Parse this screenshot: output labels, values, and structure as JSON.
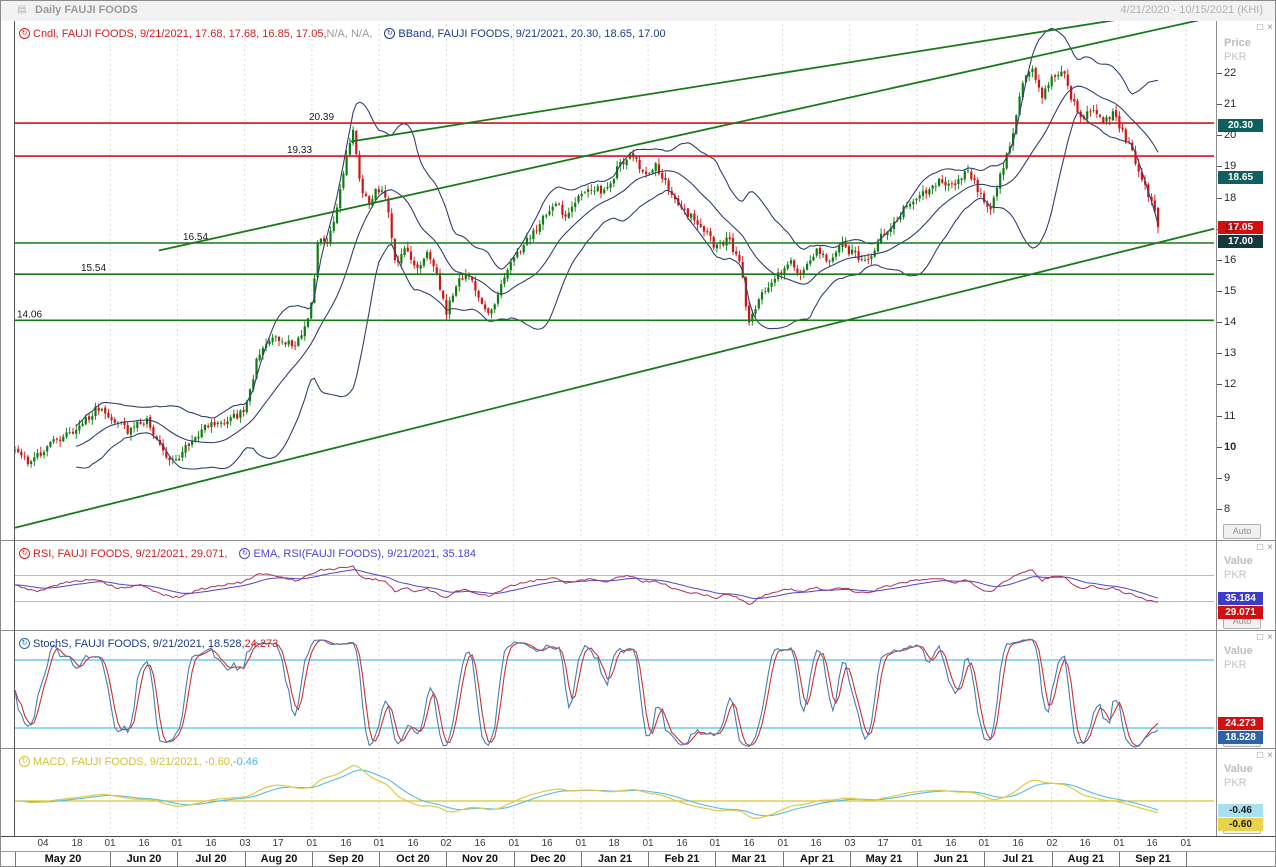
{
  "window": {
    "title": "Daily FAUJI FOODS",
    "date_range": "4/21/2020 - 10/15/2021 (KHI)"
  },
  "icons": {
    "maximize": "□",
    "close": "×"
  },
  "colors": {
    "up": "#0e7c12",
    "down": "#cf1616",
    "bband": "#33406e",
    "trend": "#1a7a1a",
    "level_green": "#1a7a1a",
    "level_red": "#d21414",
    "rsi": "#b03058",
    "rsi_ema": "#4848d0",
    "rsi_ref": "#d89090",
    "stoch_k": "#4a7ab0",
    "stoch_d": "#cc3333",
    "stoch_ref": "#72cbe8",
    "macd": "#ddc94a",
    "macd_signal": "#55bede",
    "macd_zero": "#d6c23a",
    "grid": "#d9d9d9"
  },
  "legends": {
    "price": [
      {
        "icon": "#d42020",
        "segments": [
          {
            "text": "Cndl, FAUJI FOODS, 9/21/2021, 17.68, 17.68, 16.85, 17.05, ",
            "color": "#d42020"
          },
          {
            "text": "N/A, N/A,",
            "color": "#9a9a9a"
          }
        ]
      },
      {
        "icon": "#1b3c8c",
        "segments": [
          {
            "text": "BBand, FAUJI FOODS, 9/21/2021, 20.30, 18.65, 17.00",
            "color": "#1b3c8c"
          }
        ]
      }
    ],
    "rsi": [
      {
        "icon": "#d42020",
        "segments": [
          {
            "text": "RSI, FAUJI FOODS, 9/21/2021, 29.071,",
            "color": "#d42020"
          }
        ]
      },
      {
        "icon": "#4848d0",
        "segments": [
          {
            "text": "EMA, RSI(FAUJI FOODS), 9/21/2021, 35.184",
            "color": "#4848d0"
          }
        ]
      }
    ],
    "stoch": [
      {
        "icon": "#2d62a8",
        "segments": [
          {
            "text": "StochS, FAUJI FOODS, 9/21/2021, 18.528, ",
            "color": "#1b3c8c"
          },
          {
            "text": "24.273",
            "color": "#d42020"
          }
        ]
      }
    ],
    "macd": [
      {
        "icon": "#cfc23a",
        "segments": [
          {
            "text": "MACD, FAUJI FOODS, 9/21/2021, -0.60, ",
            "color": "#cfc23a"
          },
          {
            "text": "-0.46",
            "color": "#4ab8dc"
          }
        ]
      }
    ]
  },
  "axis": {
    "price": {
      "unit_title": "Price",
      "unit": "PKR",
      "auto": "Auto",
      "ticks": [
        22,
        21,
        20,
        19,
        18,
        17,
        16,
        15,
        14,
        13,
        12,
        11,
        10,
        9,
        8
      ],
      "badges": [
        {
          "text": "20.30",
          "bg": "#115e5e",
          "fg": "#ffffff",
          "value": 20.3
        },
        {
          "text": "18.65",
          "bg": "#115e5e",
          "fg": "#ffffff",
          "value": 18.65
        },
        {
          "text": "17.05",
          "bg": "#d01010",
          "fg": "#ffffff",
          "value": 17.05
        },
        {
          "text": "17.00",
          "bg": "#123a3a",
          "fg": "#ffffff",
          "value": 17.0
        }
      ]
    },
    "rsi": {
      "unit_title": "Value",
      "unit": "PKR",
      "auto": "Auto",
      "badges": [
        {
          "text": "35.184",
          "bg": "#3c3cc8",
          "fg": "#ffffff",
          "value": 35.184
        },
        {
          "text": "29.071",
          "bg": "#d01010",
          "fg": "#ffffff",
          "value": 29.071
        }
      ]
    },
    "stoch": {
      "unit_title": "Value",
      "unit": "PKR",
      "auto": "Auto",
      "badges": [
        {
          "text": "24.273",
          "bg": "#d01010",
          "fg": "#ffffff",
          "value": 24.273
        },
        {
          "text": "18.528",
          "bg": "#2d62a8",
          "fg": "#ffffff",
          "value": 18.528
        }
      ]
    },
    "macd": {
      "unit_title": "Value",
      "unit": "PKR",
      "auto": "Auto",
      "badges": [
        {
          "text": "-0.46",
          "bg": "#a9e0f0",
          "fg": "#1a1a1a",
          "value": -0.46
        },
        {
          "text": "-0.60",
          "bg": "#e8d34a",
          "fg": "#1a1a1a",
          "value": -0.6
        }
      ]
    }
  },
  "x_axis": {
    "ticks": [
      "04",
      "18",
      "01",
      "16",
      "01",
      "16",
      "03",
      "17",
      "01",
      "16",
      "01",
      "16",
      "02",
      "16",
      "01",
      "16",
      "01",
      "18",
      "01",
      "16",
      "01",
      "16",
      "01",
      "16",
      "03",
      "17",
      "01",
      "16",
      "01",
      "16",
      "02",
      "16",
      "01",
      "16",
      "01"
    ],
    "months": [
      "May 20",
      "Jun 20",
      "Jul 20",
      "Aug 20",
      "Sep 20",
      "Oct 20",
      "Nov 20",
      "Dec 20",
      "Jan 21",
      "Feb 21",
      "Mar 21",
      "Apr 21",
      "May 21",
      "Jun 21",
      "Jul 21",
      "Aug 21",
      "Sep 21"
    ]
  },
  "chart_data": {
    "type": "candlestick",
    "symbol": "FAUJI FOODS",
    "timeframe": "Daily",
    "visible_range": "4/21/2020 - 10/15/2021",
    "price_axis_range": [
      7.5,
      23.5
    ],
    "last_candle": {
      "date": "9/21/2021",
      "open": 17.68,
      "high": 17.68,
      "low": 16.85,
      "close": 17.05
    },
    "close_keypoints": [
      [
        0.0,
        9.9
      ],
      [
        0.012,
        9.5
      ],
      [
        0.035,
        10.2
      ],
      [
        0.055,
        10.6
      ],
      [
        0.071,
        11.2
      ],
      [
        0.085,
        10.9
      ],
      [
        0.1,
        10.5
      ],
      [
        0.115,
        10.9
      ],
      [
        0.128,
        9.9
      ],
      [
        0.14,
        9.5
      ],
      [
        0.15,
        10.0
      ],
      [
        0.165,
        10.6
      ],
      [
        0.18,
        10.8
      ],
      [
        0.195,
        11.0
      ],
      [
        0.202,
        11.2
      ],
      [
        0.213,
        13.0
      ],
      [
        0.228,
        13.5
      ],
      [
        0.246,
        13.2
      ],
      [
        0.259,
        14.5
      ],
      [
        0.266,
        16.9
      ],
      [
        0.272,
        16.4
      ],
      [
        0.281,
        17.5
      ],
      [
        0.29,
        19.4
      ],
      [
        0.296,
        20.1
      ],
      [
        0.303,
        18.3
      ],
      [
        0.31,
        17.7
      ],
      [
        0.316,
        18.4
      ],
      [
        0.325,
        17.9
      ],
      [
        0.333,
        15.9
      ],
      [
        0.342,
        16.4
      ],
      [
        0.351,
        15.7
      ],
      [
        0.36,
        16.2
      ],
      [
        0.368,
        15.8
      ],
      [
        0.377,
        14.3
      ],
      [
        0.386,
        15.2
      ],
      [
        0.395,
        15.6
      ],
      [
        0.403,
        15.0
      ],
      [
        0.414,
        14.2
      ],
      [
        0.423,
        14.9
      ],
      [
        0.434,
        15.9
      ],
      [
        0.447,
        16.6
      ],
      [
        0.46,
        17.2
      ],
      [
        0.473,
        17.8
      ],
      [
        0.482,
        17.4
      ],
      [
        0.493,
        18.0
      ],
      [
        0.504,
        18.3
      ],
      [
        0.517,
        18.2
      ],
      [
        0.528,
        19.0
      ],
      [
        0.539,
        19.4
      ],
      [
        0.55,
        18.8
      ],
      [
        0.561,
        19.0
      ],
      [
        0.572,
        18.3
      ],
      [
        0.583,
        17.7
      ],
      [
        0.596,
        17.2
      ],
      [
        0.605,
        16.9
      ],
      [
        0.613,
        16.4
      ],
      [
        0.624,
        16.7
      ],
      [
        0.635,
        15.8
      ],
      [
        0.642,
        13.9
      ],
      [
        0.653,
        14.9
      ],
      [
        0.666,
        15.5
      ],
      [
        0.679,
        15.9
      ],
      [
        0.689,
        15.5
      ],
      [
        0.701,
        16.3
      ],
      [
        0.711,
        16.0
      ],
      [
        0.723,
        16.5
      ],
      [
        0.736,
        16.1
      ],
      [
        0.746,
        15.9
      ],
      [
        0.758,
        16.8
      ],
      [
        0.771,
        17.3
      ],
      [
        0.784,
        17.9
      ],
      [
        0.797,
        18.2
      ],
      [
        0.81,
        18.6
      ],
      [
        0.823,
        18.3
      ],
      [
        0.832,
        19.0
      ],
      [
        0.843,
        18.2
      ],
      [
        0.854,
        17.6
      ],
      [
        0.863,
        18.9
      ],
      [
        0.871,
        19.6
      ],
      [
        0.88,
        21.4
      ],
      [
        0.889,
        22.3
      ],
      [
        0.898,
        21.2
      ],
      [
        0.906,
        21.8
      ],
      [
        0.917,
        22.1
      ],
      [
        0.926,
        21.0
      ],
      [
        0.934,
        20.6
      ],
      [
        0.943,
        20.9
      ],
      [
        0.952,
        20.4
      ],
      [
        0.961,
        20.7
      ],
      [
        0.969,
        20.1
      ],
      [
        0.978,
        19.4
      ],
      [
        0.987,
        18.5
      ],
      [
        0.994,
        17.9
      ],
      [
        1.0,
        17.05
      ]
    ],
    "levels": [
      {
        "price": 20.39,
        "color": "red",
        "label": "20.39",
        "label_x": 0.245
      },
      {
        "price": 19.33,
        "color": "red",
        "label": "19.33",
        "label_x": 0.227
      },
      {
        "price": 16.54,
        "color": "green",
        "label": "16.54",
        "label_x": 0.14
      },
      {
        "price": 15.54,
        "color": "green",
        "label": "15.54",
        "label_x": 0.055
      },
      {
        "price": 14.06,
        "color": "green",
        "label": "14.06",
        "label_x": 0.002
      }
    ],
    "trendlines": [
      {
        "x1": 0.0,
        "price1": 7.4,
        "x2": 1.0,
        "price2": 17.0
      },
      {
        "x1": 0.12,
        "price1": 16.3,
        "x2": 1.0,
        "price2": 23.8
      },
      {
        "x1": 0.28,
        "price1": 19.8,
        "x2": 1.0,
        "price2": 24.2
      }
    ],
    "indicators": {
      "bband": {
        "period": 20,
        "stdev": 2,
        "upper": 20.3,
        "middle": 18.65,
        "lower": 17.0
      },
      "rsi": {
        "value": 29.071,
        "ema_value": 35.184,
        "ref_levels": [
          70,
          30
        ],
        "keypoints": [
          [
            0.0,
            55
          ],
          [
            0.02,
            45
          ],
          [
            0.04,
            58
          ],
          [
            0.07,
            65
          ],
          [
            0.09,
            50
          ],
          [
            0.11,
            55
          ],
          [
            0.13,
            40
          ],
          [
            0.143,
            36
          ],
          [
            0.16,
            48
          ],
          [
            0.18,
            55
          ],
          [
            0.2,
            60
          ],
          [
            0.213,
            72
          ],
          [
            0.228,
            70
          ],
          [
            0.246,
            62
          ],
          [
            0.266,
            78
          ],
          [
            0.281,
            80
          ],
          [
            0.296,
            85
          ],
          [
            0.303,
            66
          ],
          [
            0.316,
            64
          ],
          [
            0.325,
            60
          ],
          [
            0.333,
            45
          ],
          [
            0.342,
            52
          ],
          [
            0.351,
            44
          ],
          [
            0.36,
            50
          ],
          [
            0.377,
            36
          ],
          [
            0.386,
            45
          ],
          [
            0.395,
            48
          ],
          [
            0.414,
            38
          ],
          [
            0.423,
            45
          ],
          [
            0.434,
            54
          ],
          [
            0.447,
            60
          ],
          [
            0.46,
            64
          ],
          [
            0.473,
            66
          ],
          [
            0.482,
            58
          ],
          [
            0.493,
            63
          ],
          [
            0.504,
            65
          ],
          [
            0.517,
            60
          ],
          [
            0.528,
            68
          ],
          [
            0.539,
            70
          ],
          [
            0.55,
            60
          ],
          [
            0.561,
            62
          ],
          [
            0.572,
            53
          ],
          [
            0.583,
            46
          ],
          [
            0.596,
            42
          ],
          [
            0.605,
            40
          ],
          [
            0.613,
            35
          ],
          [
            0.624,
            42
          ],
          [
            0.635,
            33
          ],
          [
            0.642,
            25
          ],
          [
            0.653,
            38
          ],
          [
            0.666,
            45
          ],
          [
            0.679,
            50
          ],
          [
            0.689,
            44
          ],
          [
            0.701,
            52
          ],
          [
            0.711,
            47
          ],
          [
            0.723,
            52
          ],
          [
            0.736,
            45
          ],
          [
            0.746,
            42
          ],
          [
            0.758,
            52
          ],
          [
            0.771,
            56
          ],
          [
            0.784,
            62
          ],
          [
            0.797,
            64
          ],
          [
            0.81,
            66
          ],
          [
            0.823,
            58
          ],
          [
            0.832,
            65
          ],
          [
            0.843,
            50
          ],
          [
            0.854,
            44
          ],
          [
            0.863,
            58
          ],
          [
            0.871,
            65
          ],
          [
            0.88,
            75
          ],
          [
            0.889,
            80
          ],
          [
            0.898,
            62
          ],
          [
            0.906,
            68
          ],
          [
            0.917,
            70
          ],
          [
            0.926,
            55
          ],
          [
            0.934,
            50
          ],
          [
            0.943,
            54
          ],
          [
            0.952,
            48
          ],
          [
            0.961,
            52
          ],
          [
            0.969,
            45
          ],
          [
            0.978,
            40
          ],
          [
            0.987,
            34
          ],
          [
            1.0,
            29.071
          ]
        ]
      },
      "stochs": {
        "k": 18.528,
        "d": 24.273,
        "ref_levels": [
          80,
          20
        ],
        "period": 7,
        "smooth": 3,
        "signal": 3
      },
      "macd": {
        "macd": -0.6,
        "signal": -0.46,
        "fast": 12,
        "slow": 26,
        "signal_period": 9
      }
    }
  }
}
